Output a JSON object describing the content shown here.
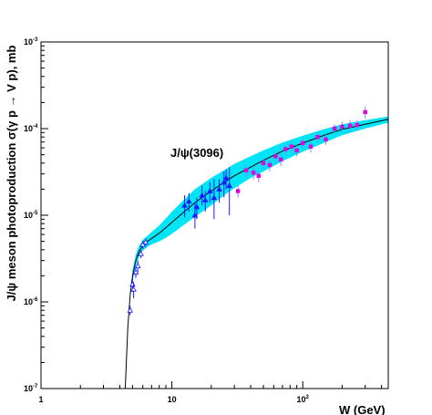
{
  "chart_data": {
    "type": "scatter",
    "xlabel": "W (GeV)",
    "ylabel": "J/ψ meson photoproduction σ(γ p → V p), mb",
    "annotation": "J/ψ(3096)",
    "x_scale": "log",
    "y_scale": "log",
    "xlim": [
      1,
      450
    ],
    "ylim": [
      1e-07,
      0.001
    ],
    "grid": false,
    "x_ticks": [
      {
        "value": 1,
        "base": "1",
        "exp": ""
      },
      {
        "value": 10,
        "base": "10",
        "exp": ""
      },
      {
        "value": 100,
        "base": "10",
        "exp": "2"
      }
    ],
    "y_ticks": [
      {
        "value": 1e-07,
        "base": "10",
        "exp": "-7"
      },
      {
        "value": 1e-06,
        "base": "10",
        "exp": "-6"
      },
      {
        "value": 1e-05,
        "base": "10",
        "exp": "-5"
      },
      {
        "value": 0.0001,
        "base": "10",
        "exp": "-4"
      },
      {
        "value": 0.001,
        "base": "10",
        "exp": "-3"
      }
    ],
    "colors": {
      "band": "#00e5f5",
      "fit": "#000000",
      "low_energy": "#1a1aff",
      "mid_energy": "#1a1aff",
      "hera": "#e000e0",
      "other_error": "#8888ff"
    },
    "fit_curve": {
      "x": [
        4.4,
        4.6,
        4.8,
        5.0,
        5.3,
        5.6,
        6.0,
        6.5,
        7,
        8,
        9,
        10,
        12,
        15,
        20,
        25,
        30,
        40,
        50,
        70,
        100,
        150,
        200,
        300,
        450
      ],
      "y": [
        1e-07,
        5e-07,
        1.2e-06,
        2e-06,
        3e-06,
        3.8e-06,
        4.5e-06,
        5e-06,
        5.4e-06,
        6.2e-06,
        7.2e-06,
        8.3e-06,
        1.05e-05,
        1.4e-05,
        1.9e-05,
        2.4e-05,
        2.85e-05,
        3.6e-05,
        4.3e-05,
        5.5e-05,
        6.8e-05,
        8.5e-05,
        9.8e-05,
        0.000112,
        0.000128
      ]
    },
    "band_upper": {
      "x": [
        5.0,
        5.3,
        5.6,
        6.0,
        6.5,
        7,
        8,
        9,
        10,
        12,
        15,
        20,
        25,
        30,
        40,
        50,
        70,
        100,
        150,
        200,
        300,
        450
      ],
      "y": [
        2.3e-06,
        3.5e-06,
        4.4e-06,
        5.2e-06,
        5.8e-06,
        6.4e-06,
        7.6e-06,
        9.2e-06,
        1.1e-05,
        1.45e-05,
        2e-05,
        2.7e-05,
        3.3e-05,
        3.9e-05,
        4.8e-05,
        5.6e-05,
        6.9e-05,
        8.3e-05,
        0.0001,
        0.000112,
        0.000125,
        0.000138
      ]
    },
    "band_lower": {
      "x": [
        5.0,
        5.3,
        5.6,
        6.0,
        6.5,
        7,
        8,
        9,
        10,
        12,
        15,
        20,
        25,
        30,
        40,
        50,
        70,
        100,
        150,
        200,
        300,
        450
      ],
      "y": [
        1.7e-06,
        2.6e-06,
        3.3e-06,
        3.9e-06,
        4.3e-06,
        4.6e-06,
        5e-06,
        5.5e-06,
        6.1e-06,
        7.5e-06,
        9.6e-06,
        1.3e-05,
        1.7e-05,
        2.05e-05,
        2.7e-05,
        3.2e-05,
        4.2e-05,
        5.4e-05,
        7e-05,
        8.4e-05,
        0.0001,
        0.000117
      ]
    },
    "series": [
      {
        "marker": "open-triangle",
        "color_key": "low_energy",
        "points": [
          {
            "x": 4.8,
            "y": 8e-07,
            "ylo": 7e-07,
            "yhi": 9e-07
          },
          {
            "x": 5.0,
            "y": 1.6e-06,
            "ylo": 1.3e-06,
            "yhi": 1.9e-06
          },
          {
            "x": 5.1,
            "y": 1.4e-06,
            "ylo": 1.1e-06,
            "yhi": 1.7e-06
          },
          {
            "x": 5.3,
            "y": 2.2e-06,
            "ylo": 1.9e-06,
            "yhi": 2.5e-06
          },
          {
            "x": 5.5,
            "y": 2.6e-06,
            "ylo": 2.2e-06,
            "yhi": 3e-06
          },
          {
            "x": 5.8,
            "y": 3.6e-06,
            "ylo": 3.2e-06,
            "yhi": 4e-06
          },
          {
            "x": 6.0,
            "y": 4.6e-06,
            "ylo": 4.1e-06,
            "yhi": 5.1e-06
          },
          {
            "x": 6.3,
            "y": 4.9e-06,
            "ylo": 4.4e-06,
            "yhi": 5.4e-06
          }
        ]
      },
      {
        "marker": "filled-triangle",
        "color_key": "mid_energy",
        "points": [
          {
            "x": 12.5,
            "y": 1.3e-05,
            "ylo": 9.5e-06,
            "yhi": 1.7e-05
          },
          {
            "x": 13.5,
            "y": 1.45e-05,
            "ylo": 1.1e-05,
            "yhi": 1.8e-05
          },
          {
            "x": 15,
            "y": 1e-05,
            "ylo": 7e-06,
            "yhi": 1.4e-05
          },
          {
            "x": 15.5,
            "y": 1.25e-05,
            "ylo": 9e-06,
            "yhi": 1.6e-05
          },
          {
            "x": 17,
            "y": 1.7e-05,
            "ylo": 1.3e-05,
            "yhi": 2.2e-05
          },
          {
            "x": 18,
            "y": 1.5e-05,
            "ylo": 1.1e-05,
            "yhi": 1.9e-05
          },
          {
            "x": 19.5,
            "y": 1.9e-05,
            "ylo": 1.4e-05,
            "yhi": 2.4e-05
          },
          {
            "x": 21,
            "y": 1.6e-05,
            "ylo": 9e-06,
            "yhi": 2.6e-05
          },
          {
            "x": 23,
            "y": 2e-05,
            "ylo": 1.4e-05,
            "yhi": 2.6e-05
          },
          {
            "x": 25,
            "y": 2.4e-05,
            "ylo": 1.6e-05,
            "yhi": 3.2e-05
          },
          {
            "x": 26,
            "y": 2.7e-05,
            "ylo": 2e-05,
            "yhi": 3.4e-05
          },
          {
            "x": 27.5,
            "y": 2.2e-05,
            "ylo": 1e-05,
            "yhi": 3.6e-05
          }
        ]
      },
      {
        "marker": "filled-square",
        "color_key": "hera",
        "points": [
          {
            "x": 32,
            "y": 1.9e-05,
            "ylo": 1.6e-05,
            "yhi": 2.2e-05
          },
          {
            "x": 37,
            "y": 3.3e-05,
            "ylo": 2.8e-05,
            "yhi": 3.8e-05
          },
          {
            "x": 42,
            "y": 3.1e-05,
            "ylo": 2.6e-05,
            "yhi": 3.6e-05
          },
          {
            "x": 46,
            "y": 2.85e-05,
            "ylo": 2.4e-05,
            "yhi": 3.3e-05
          },
          {
            "x": 50,
            "y": 4e-05,
            "ylo": 3.4e-05,
            "yhi": 4.6e-05
          },
          {
            "x": 56,
            "y": 3.8e-05,
            "ylo": 3.2e-05,
            "yhi": 4.4e-05
          },
          {
            "x": 62,
            "y": 4.8e-05,
            "ylo": 4.1e-05,
            "yhi": 5.5e-05
          },
          {
            "x": 68,
            "y": 4.4e-05,
            "ylo": 3.7e-05,
            "yhi": 5.1e-05
          },
          {
            "x": 74,
            "y": 5.8e-05,
            "ylo": 5e-05,
            "yhi": 6.6e-05
          },
          {
            "x": 82,
            "y": 6.2e-05,
            "ylo": 5.4e-05,
            "yhi": 7e-05
          },
          {
            "x": 90,
            "y": 5.6e-05,
            "ylo": 4.8e-05,
            "yhi": 6.4e-05
          },
          {
            "x": 100,
            "y": 6.8e-05,
            "ylo": 5.9e-05,
            "yhi": 7.7e-05
          },
          {
            "x": 115,
            "y": 6.2e-05,
            "ylo": 5.3e-05,
            "yhi": 7.1e-05
          },
          {
            "x": 130,
            "y": 8e-05,
            "ylo": 7e-05,
            "yhi": 9e-05
          },
          {
            "x": 150,
            "y": 7.5e-05,
            "ylo": 6.5e-05,
            "yhi": 8.5e-05
          },
          {
            "x": 175,
            "y": 0.0001,
            "ylo": 8.8e-05,
            "yhi": 0.000112
          },
          {
            "x": 200,
            "y": 0.000105,
            "ylo": 9e-05,
            "yhi": 0.00012
          },
          {
            "x": 230,
            "y": 0.000108,
            "ylo": 9.2e-05,
            "yhi": 0.000124
          },
          {
            "x": 260,
            "y": 0.00011,
            "ylo": 9.4e-05,
            "yhi": 0.000126
          },
          {
            "x": 300,
            "y": 0.000155,
            "ylo": 0.00013,
            "yhi": 0.00018
          }
        ]
      }
    ]
  }
}
